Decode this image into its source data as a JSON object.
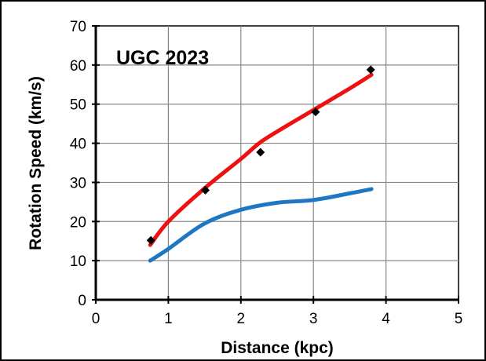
{
  "chart_data": {
    "type": "line",
    "title": "UGC 2023",
    "xlabel": "Distance  (kpc)",
    "ylabel": "Rotation Speed  (km/s)",
    "xlim": [
      0,
      5
    ],
    "ylim": [
      0,
      70
    ],
    "xticks": [
      "0",
      "1",
      "2",
      "3",
      "4",
      "5"
    ],
    "yticks": [
      "0",
      "10",
      "20",
      "30",
      "40",
      "50",
      "60",
      "70"
    ],
    "grid": true,
    "legend": "none",
    "observed_points": {
      "x": [
        0.76,
        1.51,
        2.27,
        3.03,
        3.79
      ],
      "y": [
        15.2,
        28.0,
        37.7,
        48.0,
        58.8
      ],
      "color": "#000000"
    },
    "series": [
      {
        "x": [
          0.75,
          1.0,
          1.5,
          2.0,
          2.25,
          2.5,
          3.0,
          3.5,
          3.8
        ],
        "y": [
          14.0,
          20.0,
          28.5,
          36.0,
          40.0,
          43.0,
          48.5,
          54.0,
          57.5
        ],
        "color": "#ee1111"
      },
      {
        "x": [
          0.75,
          1.0,
          1.5,
          2.0,
          2.5,
          3.0,
          3.5,
          3.8
        ],
        "y": [
          10.0,
          13.0,
          19.5,
          23.0,
          24.8,
          25.5,
          27.2,
          28.3
        ],
        "color": "#1f77c4"
      }
    ]
  }
}
